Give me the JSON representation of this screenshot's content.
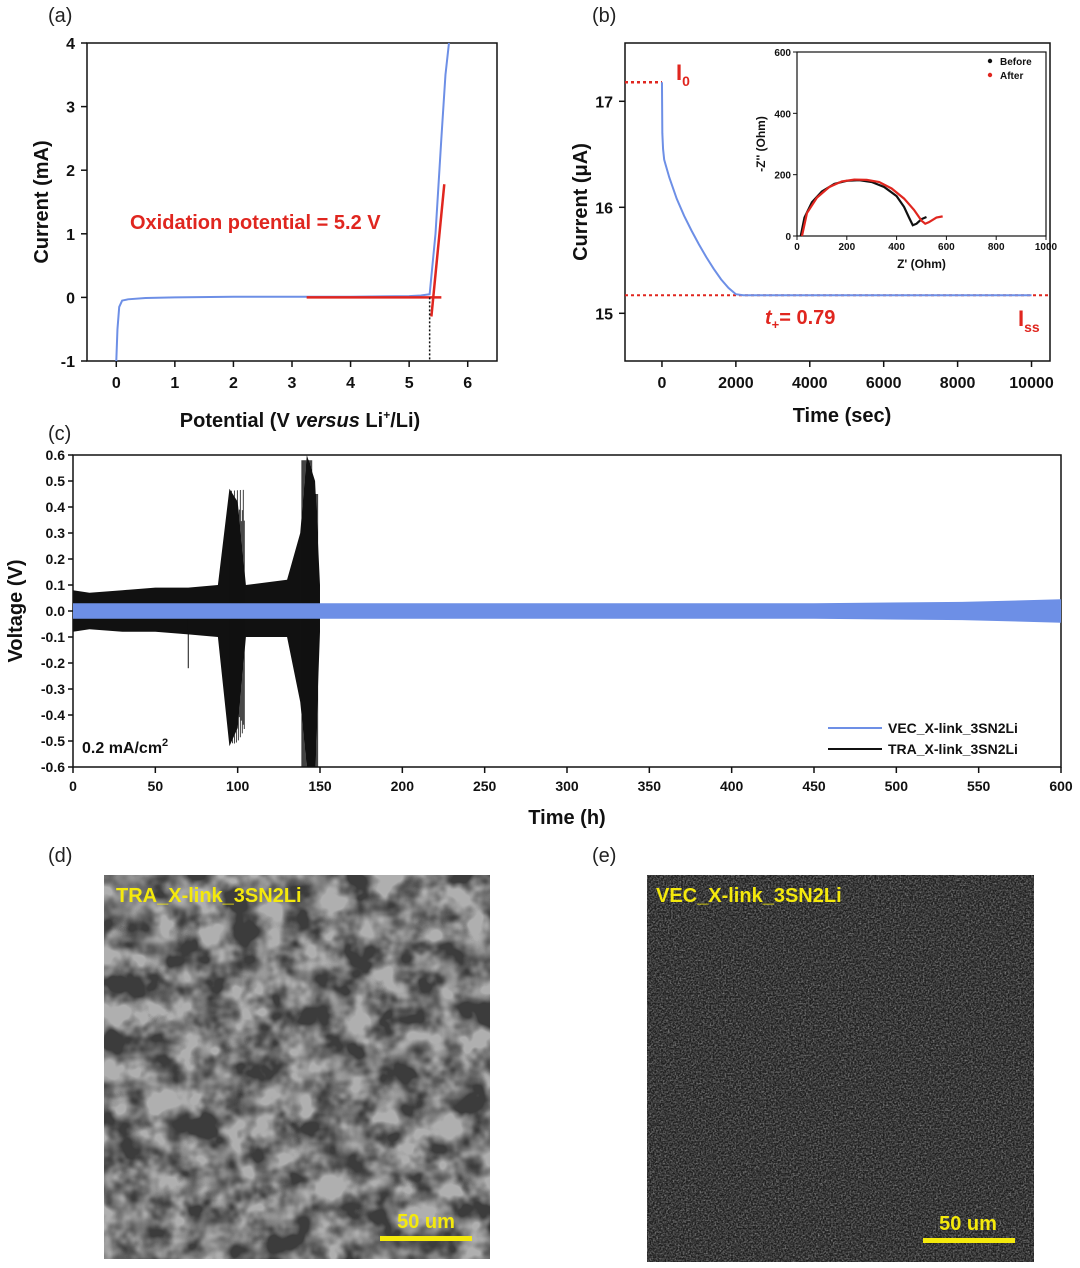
{
  "panels": {
    "a": "(a)",
    "b": "(b)",
    "c": "(c)",
    "d": "(d)",
    "e": "(e)"
  },
  "colors": {
    "blue": "#6d8fe6",
    "red": "#e0261f",
    "black": "#111111",
    "yellow": "#f4e90c"
  },
  "chart_data": [
    {
      "id": "a",
      "type": "line",
      "xlabel_parts": [
        "Potential (V ",
        "versus",
        " Li",
        "+",
        "/Li)"
      ],
      "ylabel": "Current (mA)",
      "xlim": [
        -0.5,
        6.5
      ],
      "ylim": [
        -1,
        4
      ],
      "xticks": [
        0,
        1,
        2,
        3,
        4,
        5,
        6
      ],
      "yticks": [
        -1,
        0,
        1,
        2,
        3,
        4
      ],
      "annotation": "Oxidation potential = 5.2 V",
      "series": [
        {
          "color": "blue",
          "x": [
            0.0,
            0.02,
            0.05,
            0.1,
            0.2,
            0.5,
            1.0,
            2.0,
            3.0,
            4.0,
            5.0,
            5.2,
            5.35,
            5.45,
            5.55,
            5.62,
            5.68
          ],
          "y": [
            -1.0,
            -0.5,
            -0.15,
            -0.05,
            -0.03,
            -0.01,
            0.0,
            0.01,
            0.01,
            0.01,
            0.02,
            0.03,
            0.05,
            1.0,
            2.5,
            3.5,
            4.0
          ]
        }
      ],
      "tangents": [
        {
          "x": [
            3.25,
            5.55
          ],
          "y": [
            0.0,
            0.0
          ]
        },
        {
          "x": [
            5.38,
            5.6
          ],
          "y": [
            -0.3,
            1.78
          ]
        }
      ],
      "marker_line_x": 5.35
    },
    {
      "id": "b",
      "type": "line",
      "xlabel": "Time (sec)",
      "ylabel": "Current (μA)",
      "xlim": [
        -1000,
        10500
      ],
      "ylim": [
        14.55,
        17.55
      ],
      "xticks": [
        0,
        2000,
        4000,
        6000,
        8000,
        10000
      ],
      "yticks": [
        15,
        16,
        17
      ],
      "i0_label": "I",
      "i0_sub": "0",
      "iss_label": "I",
      "iss_sub": "ss",
      "t_label": "t",
      "t_sub": "+",
      "t_value": "= 0.79",
      "i0_value": 17.18,
      "iss_value": 15.17,
      "series": [
        {
          "color": "blue",
          "x": [
            0,
            10,
            30,
            60,
            100,
            200,
            300,
            400,
            600,
            800,
            1000,
            1200,
            1400,
            1600,
            1800,
            2000,
            2200,
            4000,
            6000,
            8000,
            10000
          ],
          "y": [
            17.18,
            16.7,
            16.55,
            16.45,
            16.4,
            16.28,
            16.18,
            16.08,
            15.92,
            15.78,
            15.65,
            15.53,
            15.42,
            15.32,
            15.24,
            15.18,
            15.17,
            15.17,
            15.17,
            15.17,
            15.17
          ]
        }
      ],
      "inset": {
        "xlabel": "Z' (Ohm)",
        "ylabel": "-Z'' (Ohm)",
        "xlim": [
          0,
          1000
        ],
        "ylim": [
          0,
          600
        ],
        "xticks": [
          0,
          200,
          400,
          600,
          800,
          1000
        ],
        "yticks": [
          0,
          200,
          400,
          600
        ],
        "legend": [
          "Before",
          "After"
        ],
        "series": [
          {
            "name": "Before",
            "color": "black",
            "x": [
              15,
              30,
              60,
              100,
              150,
              200,
              250,
              300,
              350,
              400,
              430,
              450,
              465,
              480,
              500,
              520
            ],
            "y": [
              0,
              60,
              110,
              145,
              170,
              180,
              182,
              176,
              160,
              130,
              95,
              60,
              35,
              40,
              55,
              62
            ]
          },
          {
            "name": "After",
            "color": "red",
            "x": [
              20,
              40,
              80,
              130,
              180,
              230,
              280,
              330,
              380,
              430,
              470,
              500,
              515,
              530,
              560,
              585
            ],
            "y": [
              0,
              75,
              125,
              160,
              178,
              184,
              183,
              176,
              155,
              122,
              85,
              50,
              40,
              45,
              60,
              64
            ]
          }
        ]
      }
    },
    {
      "id": "c",
      "type": "line",
      "xlabel": "Time (h)",
      "ylabel": "Voltage (V)",
      "xlim": [
        0,
        600
      ],
      "ylim": [
        -0.6,
        0.6
      ],
      "xticks": [
        0,
        50,
        100,
        150,
        200,
        250,
        300,
        350,
        400,
        450,
        500,
        550,
        600
      ],
      "yticks": [
        -0.6,
        -0.5,
        -0.4,
        -0.3,
        -0.2,
        -0.1,
        0.0,
        0.1,
        0.2,
        0.3,
        0.4,
        0.5,
        0.6
      ],
      "ytick_labels": [
        "-0.6",
        "-0.5",
        "-0.4",
        "-0.3",
        "-0.2",
        "-0.1",
        "0.0",
        "0.1",
        "0.2",
        "0.3",
        "0.4",
        "0.5",
        "0.6"
      ],
      "condition": "0.2 mA/cm",
      "condition_sup": "2",
      "legend": [
        "VEC_X-link_3SN2Li",
        "TRA_X-link_3SN2Li"
      ],
      "series": [
        {
          "name": "TRA_X-link_3SN2Li",
          "color": "black",
          "x": [
            0,
            10,
            30,
            50,
            70,
            88,
            95,
            100,
            105,
            130,
            138,
            142,
            147,
            150
          ],
          "upper": [
            0.08,
            0.07,
            0.08,
            0.09,
            0.09,
            0.1,
            0.47,
            0.42,
            0.1,
            0.12,
            0.3,
            0.6,
            0.5,
            0.1
          ],
          "lower": [
            -0.08,
            -0.07,
            -0.08,
            -0.08,
            -0.09,
            -0.1,
            -0.52,
            -0.45,
            -0.1,
            -0.1,
            -0.35,
            -0.6,
            -0.6,
            -0.08
          ]
        },
        {
          "name": "VEC_X-link_3SN2Li",
          "color": "blue",
          "x": [
            0,
            150,
            300,
            450,
            540,
            600
          ],
          "upper": [
            0.03,
            0.03,
            0.03,
            0.03,
            0.035,
            0.045
          ],
          "lower": [
            -0.03,
            -0.03,
            -0.03,
            -0.03,
            -0.035,
            -0.045
          ]
        }
      ],
      "spikes": [
        {
          "x": 70,
          "y": -0.22
        }
      ]
    }
  ],
  "images": {
    "d": {
      "label": "TRA_X-link_3SN2Li",
      "scale": "50 um"
    },
    "e": {
      "label": "VEC_X-link_3SN2Li",
      "scale": "50 um"
    }
  }
}
